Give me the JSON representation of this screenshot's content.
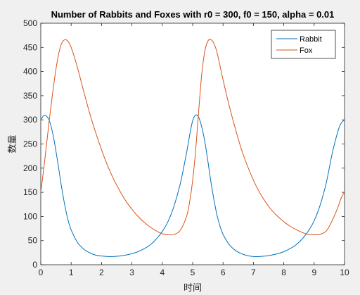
{
  "chart_data": {
    "type": "line",
    "title": "Number of Rabbits and Foxes with r0 = 300, f0 = 150, alpha = 0.01",
    "xlabel": "时间",
    "ylabel": "数量",
    "xlim": [
      0,
      10
    ],
    "ylim": [
      0,
      500
    ],
    "xticks": [
      "0",
      "1",
      "2",
      "3",
      "4",
      "5",
      "6",
      "7",
      "8",
      "9",
      "10"
    ],
    "yticks": [
      "0",
      "50",
      "100",
      "150",
      "200",
      "250",
      "300",
      "350",
      "400",
      "450",
      "500"
    ],
    "grid": false,
    "legend_position": "top-right",
    "series": [
      {
        "name": "Rabbit",
        "color": "#0072bd",
        "x": [
          0,
          0.1,
          0.2,
          0.3,
          0.4,
          0.5,
          0.6,
          0.7,
          0.8,
          0.9,
          1.0,
          1.2,
          1.4,
          1.6,
          1.8,
          2.0,
          2.2,
          2.4,
          2.6,
          2.8,
          3.0,
          3.2,
          3.4,
          3.6,
          3.8,
          4.0,
          4.2,
          4.4,
          4.6,
          4.8,
          4.9,
          5.0,
          5.1,
          5.2,
          5.3,
          5.4,
          5.5,
          5.6,
          5.7,
          5.8,
          5.9,
          6.0,
          6.2,
          6.4,
          6.6,
          6.8,
          7.0,
          7.2,
          7.4,
          7.6,
          7.8,
          8.0,
          8.2,
          8.4,
          8.6,
          8.8,
          9.0,
          9.2,
          9.4,
          9.6,
          9.8,
          9.9,
          10.0
        ],
        "y": [
          300,
          309,
          307,
          295,
          270,
          235,
          195,
          155,
          120,
          92,
          72,
          47,
          33,
          25,
          20,
          18,
          17,
          17,
          18,
          20,
          23,
          27,
          33,
          41,
          53,
          69,
          91,
          124,
          170,
          232,
          268,
          298,
          310,
          305,
          285,
          255,
          215,
          172,
          135,
          103,
          80,
          63,
          42,
          30,
          23,
          19,
          17,
          17,
          18,
          20,
          23,
          27,
          33,
          41,
          53,
          69,
          91,
          124,
          170,
          232,
          280,
          294,
          300
        ]
      },
      {
        "name": "Fox",
        "color": "#d95319",
        "x": [
          0,
          0.1,
          0.2,
          0.3,
          0.4,
          0.5,
          0.6,
          0.7,
          0.8,
          0.9,
          1.0,
          1.2,
          1.4,
          1.6,
          1.8,
          2.0,
          2.2,
          2.4,
          2.6,
          2.8,
          3.0,
          3.2,
          3.4,
          3.6,
          3.8,
          4.0,
          4.2,
          4.4,
          4.6,
          4.8,
          4.9,
          5.0,
          5.1,
          5.2,
          5.3,
          5.4,
          5.5,
          5.6,
          5.7,
          5.8,
          5.9,
          6.0,
          6.2,
          6.4,
          6.6,
          6.8,
          7.0,
          7.2,
          7.4,
          7.6,
          7.8,
          8.0,
          8.2,
          8.4,
          8.6,
          8.8,
          9.0,
          9.2,
          9.4,
          9.6,
          9.8,
          9.9,
          10.0
        ],
        "y": [
          150,
          200,
          255,
          310,
          360,
          405,
          440,
          460,
          466,
          462,
          450,
          410,
          362,
          316,
          275,
          238,
          205,
          177,
          153,
          132,
          115,
          100,
          88,
          78,
          70,
          64,
          62,
          63,
          72,
          100,
          130,
          175,
          238,
          320,
          395,
          442,
          463,
          466,
          458,
          440,
          412,
          383,
          330,
          283,
          240,
          205,
          175,
          150,
          130,
          113,
          100,
          89,
          80,
          73,
          67,
          63,
          62,
          63,
          70,
          92,
          122,
          140,
          150
        ]
      }
    ]
  }
}
